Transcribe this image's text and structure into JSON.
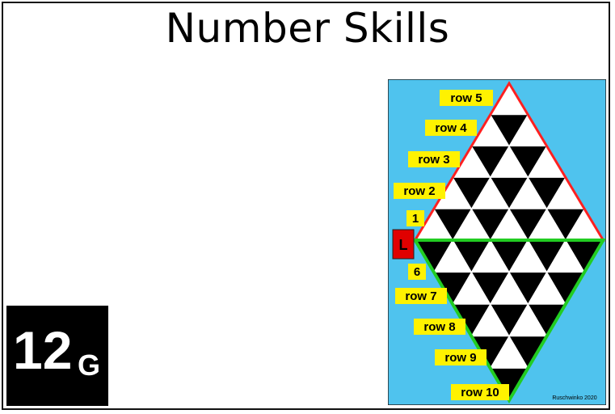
{
  "title": "Number Skills",
  "badge": {
    "number": "12",
    "letter": "G"
  },
  "diagram": {
    "background_color": "#4fc3ee",
    "upper_outline_color": "#ff2020",
    "lower_outline_color": "#22cc22",
    "label_color": "#fff200",
    "left_marker": "L",
    "left_marker_color": "#e00000",
    "row_labels_upper": [
      "row 5",
      "row 4",
      "row 3",
      "row 2",
      "1"
    ],
    "row_labels_lower": [
      "6",
      "row 7",
      "row 8",
      "row 9",
      "row 10"
    ],
    "credit": "Ruschwinko 2020"
  }
}
